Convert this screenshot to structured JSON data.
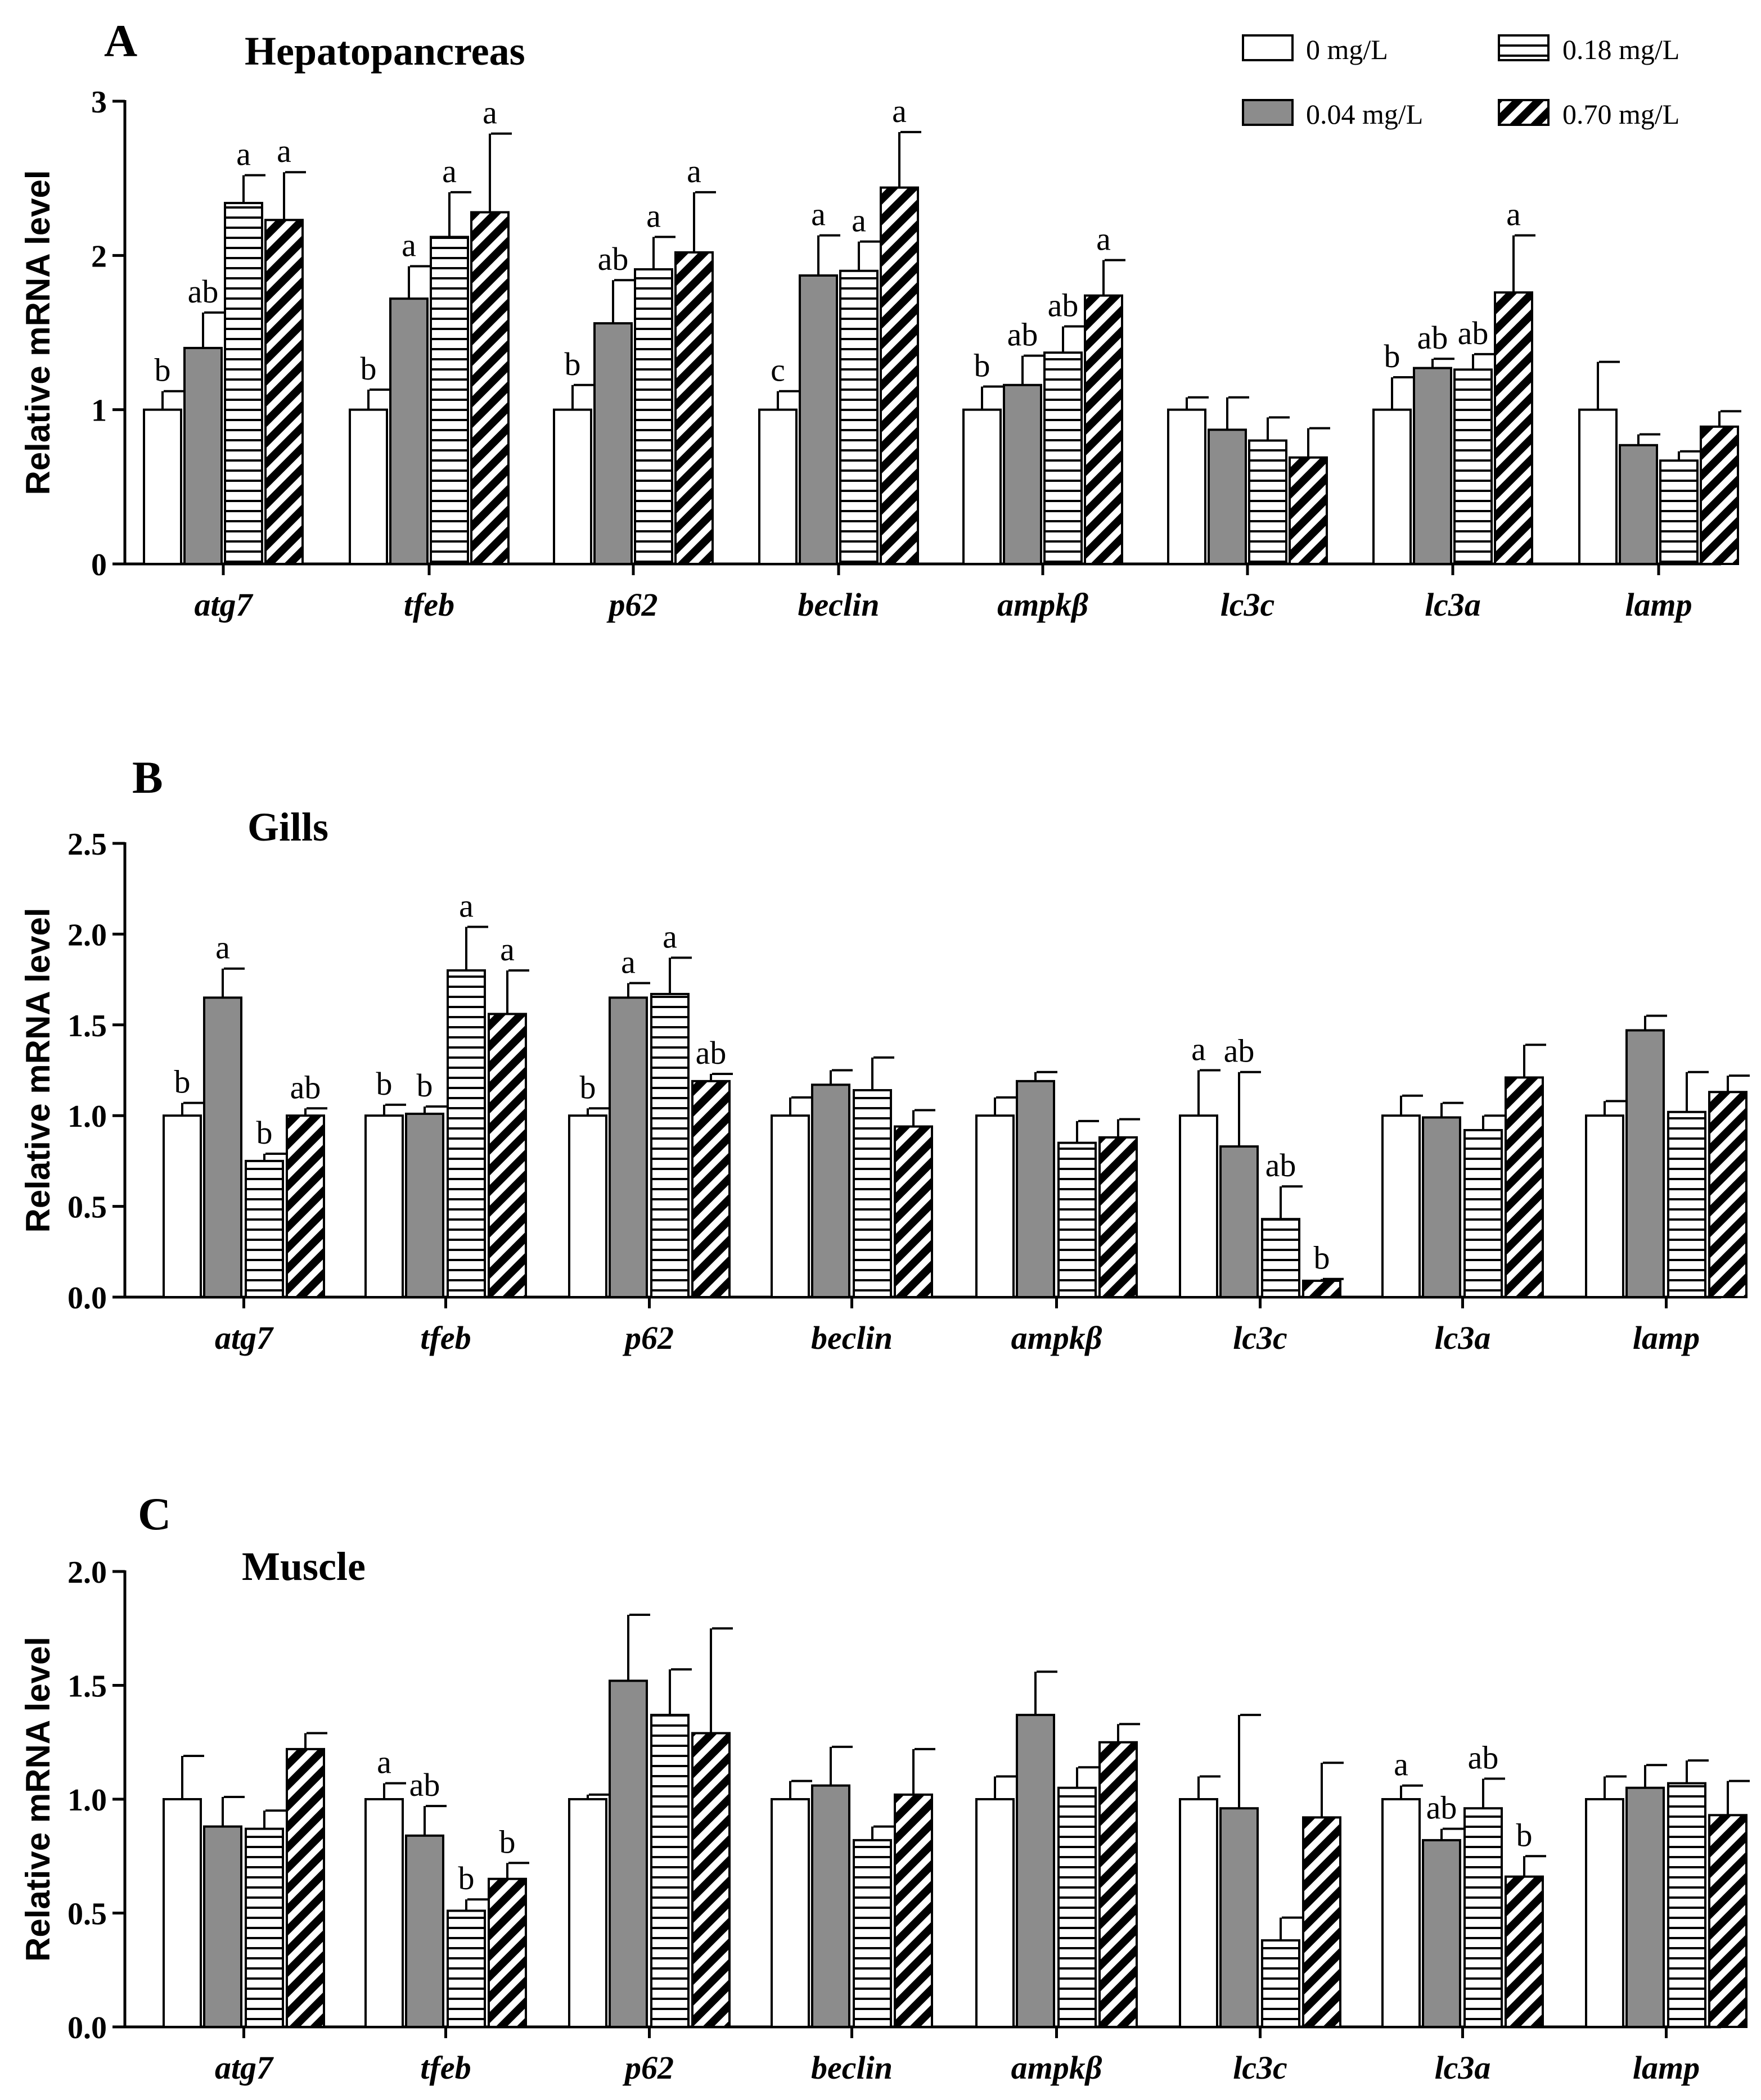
{
  "legend": [
    {
      "name": "0 mg/L",
      "pattern": "white"
    },
    {
      "name": "0.04 mg/L",
      "pattern": "gray"
    },
    {
      "name": "0.18 mg/L",
      "pattern": "hstripes"
    },
    {
      "name": "0.70 mg/L",
      "pattern": "diag"
    }
  ],
  "colors": {
    "gray_fill": "#8c8c8c",
    "stroke": "#000000",
    "background": "#ffffff"
  },
  "chart_data": [
    {
      "type": "bar",
      "letter": "A",
      "title": "Hepatopancreas",
      "ylabel": "Relative mRNA level",
      "ylim": [
        0,
        3
      ],
      "yticks": [
        0,
        1,
        2,
        3
      ],
      "ytick_labels": [
        "0",
        "1",
        "2",
        "3"
      ],
      "categories": [
        "atg7",
        "tfeb",
        "p62",
        "beclin",
        "ampkβ",
        "lc3c",
        "lc3a",
        "lamp"
      ],
      "series": [
        {
          "name": "0 mg/L",
          "values": [
            1.0,
            1.0,
            1.0,
            1.0,
            1.0,
            1.0,
            1.0,
            1.0
          ],
          "errors": [
            0.12,
            0.13,
            0.16,
            0.12,
            0.15,
            0.08,
            0.21,
            0.31
          ],
          "sig": [
            "b",
            "b",
            "b",
            "c",
            "b",
            "",
            "b",
            ""
          ]
        },
        {
          "name": "0.04 mg/L",
          "values": [
            1.4,
            1.72,
            1.56,
            1.87,
            1.16,
            0.87,
            1.27,
            0.77
          ],
          "errors": [
            0.23,
            0.21,
            0.28,
            0.26,
            0.19,
            0.21,
            0.06,
            0.07
          ],
          "sig": [
            "ab",
            "a",
            "ab",
            "a",
            "ab",
            "",
            "ab",
            ""
          ]
        },
        {
          "name": "0.18 mg/L",
          "values": [
            2.34,
            2.12,
            1.91,
            1.9,
            1.37,
            0.8,
            1.26,
            0.67
          ],
          "errors": [
            0.18,
            0.29,
            0.21,
            0.19,
            0.17,
            0.15,
            0.1,
            0.06
          ],
          "sig": [
            "a",
            "a",
            "a",
            "a",
            "ab",
            "",
            "ab",
            ""
          ]
        },
        {
          "name": "0.70 mg/L",
          "values": [
            2.23,
            2.28,
            2.02,
            2.44,
            1.74,
            0.69,
            1.76,
            0.89
          ],
          "errors": [
            0.31,
            0.51,
            0.39,
            0.36,
            0.23,
            0.19,
            0.37,
            0.1
          ],
          "sig": [
            "a",
            "a",
            "a",
            "a",
            "a",
            "",
            "a",
            ""
          ]
        }
      ]
    },
    {
      "type": "bar",
      "letter": "B",
      "title": "Gills",
      "ylabel": "Relative mRNA level",
      "ylim": [
        0,
        2.5
      ],
      "yticks": [
        0,
        0.5,
        1,
        1.5,
        2,
        2.5
      ],
      "ytick_labels": [
        "0.0",
        "0.5",
        "1.0",
        "1.5",
        "2.0",
        "2.5"
      ],
      "categories": [
        "atg7",
        "tfeb",
        "p62",
        "beclin",
        "ampkβ",
        "lc3c",
        "lc3a",
        "lamp"
      ],
      "series": [
        {
          "name": "0 mg/L",
          "values": [
            1.0,
            1.0,
            1.0,
            1.0,
            1.0,
            1.0,
            1.0,
            1.0
          ],
          "errors": [
            0.07,
            0.06,
            0.04,
            0.1,
            0.1,
            0.25,
            0.11,
            0.08
          ],
          "sig": [
            "b",
            "b",
            "b",
            "",
            "",
            "a",
            "",
            ""
          ]
        },
        {
          "name": "0.04 mg/L",
          "values": [
            1.65,
            1.01,
            1.65,
            1.17,
            1.19,
            0.83,
            0.99,
            1.47
          ],
          "errors": [
            0.16,
            0.04,
            0.08,
            0.08,
            0.05,
            0.41,
            0.08,
            0.08
          ],
          "sig": [
            "a",
            "b",
            "a",
            "",
            "",
            "ab",
            "",
            ""
          ]
        },
        {
          "name": "0.18 mg/L",
          "values": [
            0.75,
            1.8,
            1.67,
            1.14,
            0.85,
            0.43,
            0.92,
            1.02
          ],
          "errors": [
            0.04,
            0.24,
            0.2,
            0.18,
            0.12,
            0.18,
            0.08,
            0.22
          ],
          "sig": [
            "b",
            "a",
            "a",
            "",
            "",
            "ab",
            "",
            ""
          ]
        },
        {
          "name": "0.70 mg/L",
          "values": [
            1.0,
            1.56,
            1.19,
            0.94,
            0.88,
            0.09,
            1.21,
            1.13
          ],
          "errors": [
            0.04,
            0.24,
            0.04,
            0.09,
            0.1,
            0.01,
            0.18,
            0.09
          ],
          "sig": [
            "ab",
            "a",
            "ab",
            "",
            "",
            "b",
            "",
            ""
          ]
        }
      ]
    },
    {
      "type": "bar",
      "letter": "C",
      "title": "Muscle",
      "ylabel": "Relative mRNA level",
      "ylim": [
        0,
        2.0
      ],
      "yticks": [
        0,
        0.5,
        1,
        1.5,
        2
      ],
      "ytick_labels": [
        "0.0",
        "0.5",
        "1.0",
        "1.5",
        "2.0"
      ],
      "categories": [
        "atg7",
        "tfeb",
        "p62",
        "beclin",
        "ampkβ",
        "lc3c",
        "lc3a",
        "lamp"
      ],
      "series": [
        {
          "name": "0 mg/L",
          "values": [
            1.0,
            1.0,
            1.0,
            1.0,
            1.0,
            1.0,
            1.0,
            1.0
          ],
          "errors": [
            0.19,
            0.07,
            0.02,
            0.08,
            0.1,
            0.1,
            0.06,
            0.1
          ],
          "sig": [
            "",
            "a",
            "",
            "",
            "",
            "",
            "a",
            ""
          ]
        },
        {
          "name": "0.04 mg/L",
          "values": [
            0.88,
            0.84,
            1.52,
            1.06,
            1.37,
            0.96,
            0.82,
            1.05
          ],
          "errors": [
            0.13,
            0.13,
            0.29,
            0.17,
            0.19,
            0.41,
            0.05,
            0.1
          ],
          "sig": [
            "",
            "ab",
            "",
            "",
            "",
            "",
            "ab",
            ""
          ]
        },
        {
          "name": "0.18 mg/L",
          "values": [
            0.87,
            0.51,
            1.37,
            0.82,
            1.05,
            0.38,
            0.96,
            1.07
          ],
          "errors": [
            0.08,
            0.05,
            0.2,
            0.06,
            0.09,
            0.1,
            0.13,
            0.1
          ],
          "sig": [
            "",
            "b",
            "",
            "",
            "",
            "",
            "ab",
            ""
          ]
        },
        {
          "name": "0.70 mg/L",
          "values": [
            1.22,
            0.65,
            1.29,
            1.02,
            1.25,
            0.92,
            0.66,
            0.93
          ],
          "errors": [
            0.07,
            0.07,
            0.46,
            0.2,
            0.08,
            0.24,
            0.09,
            0.15
          ],
          "sig": [
            "",
            "b",
            "",
            "",
            "",
            "",
            "b",
            ""
          ]
        }
      ]
    }
  ]
}
